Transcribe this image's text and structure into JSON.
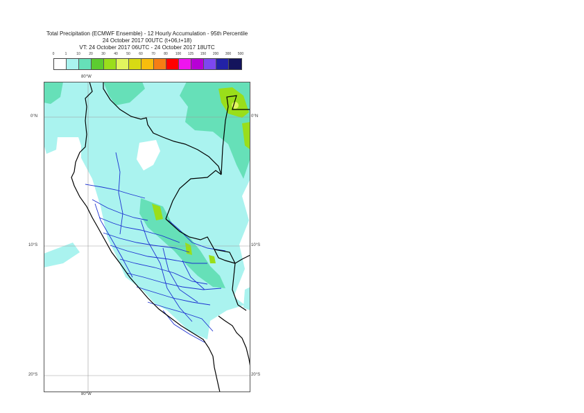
{
  "title": {
    "line1": "Total Precipitation (ECMWF Ensemble) - 12 Hourly Accumulation - 95th Percentile",
    "line2": "24 October 2017 00UTC (t+06,t+18)",
    "line3": "VT: 24 October 2017 06UTC - 24 October 2017 18UTC"
  },
  "legend": {
    "thresholds": [
      "0",
      "1",
      "10",
      "20",
      "30",
      "40",
      "50",
      "60",
      "70",
      "80",
      "100",
      "125",
      "150",
      "200",
      "300",
      "500"
    ],
    "colors": [
      "#ffffff",
      "#aaf3ef",
      "#66e0b8",
      "#5ccc30",
      "#9ade1a",
      "#e2f55e",
      "#d8da14",
      "#f8bd0d",
      "#f67d14",
      "#ff0000",
      "#ef15ef",
      "#b700d5",
      "#7d47f0",
      "#2222a7",
      "#14145c"
    ]
  },
  "axes": {
    "lon_top": "80°W",
    "lon_bottom": "80°W",
    "lat_labels": [
      "0°N",
      "10°S",
      "20°S"
    ]
  },
  "colors": {
    "light_precip": "#aaf3ef",
    "moderate_precip": "#66e0b8",
    "heavy_precip": "#9ade1a",
    "coastline": "#000000",
    "admin_boundaries": "#1a2fd0",
    "grid": "#9a9a9a"
  }
}
